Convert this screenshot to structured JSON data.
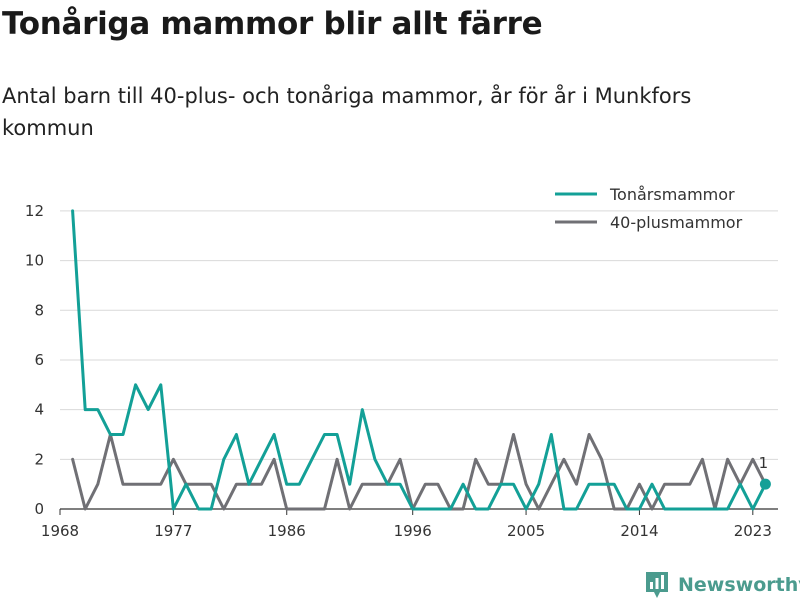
{
  "header": {
    "title": "Tonåriga mammor blir allt färre",
    "subtitle": "Antal barn till 40-plus- och tonåriga mammor, år för år i Munkfors kommun"
  },
  "brand": {
    "name": "Newsworthy",
    "icon": "chart-badge-icon"
  },
  "chart_data": {
    "type": "line",
    "x": [
      1969,
      1970,
      1971,
      1972,
      1973,
      1974,
      1975,
      1976,
      1977,
      1978,
      1979,
      1980,
      1981,
      1982,
      1983,
      1984,
      1985,
      1986,
      1987,
      1988,
      1989,
      1990,
      1991,
      1992,
      1993,
      1994,
      1995,
      1996,
      1997,
      1998,
      1999,
      2000,
      2001,
      2002,
      2003,
      2004,
      2005,
      2006,
      2007,
      2008,
      2009,
      2010,
      2011,
      2012,
      2013,
      2014,
      2015,
      2016,
      2017,
      2018,
      2019,
      2020,
      2021,
      2022,
      2023,
      2024
    ],
    "series": [
      {
        "name": "Tonårsmammor",
        "color": "#13a097",
        "values": [
          12,
          4,
          4,
          3,
          3,
          5,
          4,
          5,
          0,
          1,
          0,
          0,
          2,
          3,
          1,
          2,
          3,
          1,
          1,
          2,
          3,
          3,
          1,
          4,
          2,
          1,
          1,
          0,
          0,
          0,
          0,
          1,
          0,
          0,
          1,
          1,
          0,
          1,
          3,
          0,
          0,
          1,
          1,
          1,
          0,
          0,
          1,
          0,
          0,
          0,
          0,
          0,
          0,
          1,
          0,
          1
        ]
      },
      {
        "name": "40-plusmammor",
        "color": "#707075",
        "values": [
          2,
          0,
          1,
          3,
          1,
          1,
          1,
          1,
          2,
          1,
          1,
          1,
          0,
          1,
          1,
          1,
          2,
          0,
          0,
          0,
          0,
          2,
          0,
          1,
          1,
          1,
          2,
          0,
          1,
          1,
          0,
          0,
          2,
          1,
          1,
          3,
          1,
          0,
          1,
          2,
          1,
          3,
          2,
          0,
          0,
          1,
          0,
          1,
          1,
          1,
          2,
          0,
          2,
          1,
          2,
          1
        ]
      }
    ],
    "xticks": [
      1968,
      1977,
      1986,
      1996,
      2005,
      2014,
      2023
    ],
    "yticks": [
      0,
      2,
      4,
      6,
      8,
      10,
      12
    ],
    "xlim": [
      1968,
      2025
    ],
    "ylim": [
      0,
      12.6
    ],
    "grid": true,
    "legend_position": "top-right",
    "end_label": {
      "series": "Tonårsmammor",
      "text": "1"
    }
  }
}
